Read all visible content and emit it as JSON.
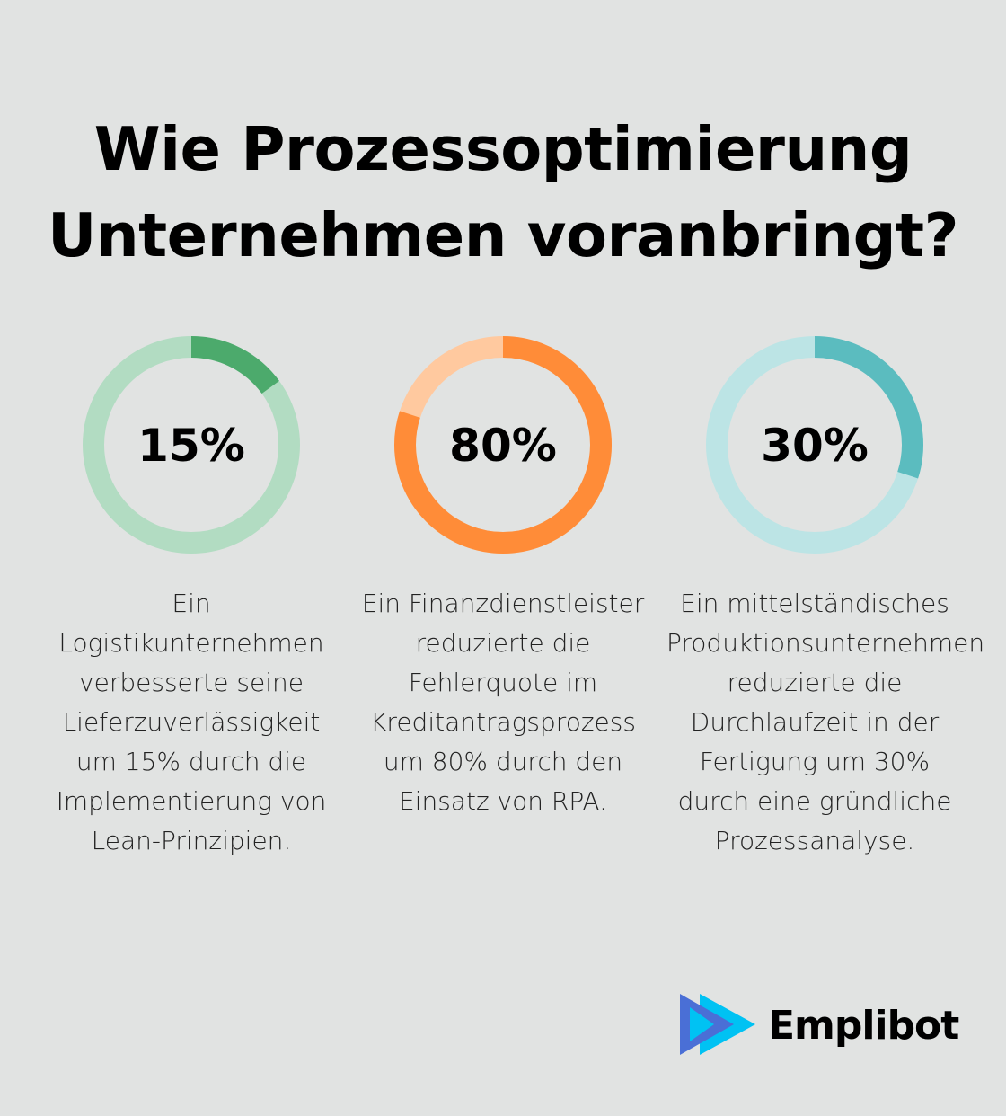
{
  "title": {
    "line1": "Wie Prozessoptimierung",
    "line2": "Unternehmen voranbringt?"
  },
  "chart_data": {
    "type": "donut",
    "title": "Wie Prozessoptimierung Unternehmen voranbringt?",
    "items": [
      {
        "label": "15%",
        "value": 15,
        "color": "#4caa6c",
        "track_color": "#b2dcc2",
        "description": "Ein Logistikunternehmen verbesserte seine Lieferzuverlässigkeit um 15% durch die Implementierung von Lean-Prinzipien."
      },
      {
        "label": "80%",
        "value": 80,
        "color": "#ff8c38",
        "track_color": "#ffc99f",
        "description": "Ein Finanzdienstleister reduzierte die Fehlerquote im Kreditantragsprozess um 80% durch den Einsatz von RPA."
      },
      {
        "label": "30%",
        "value": 30,
        "color": "#5bbcbf",
        "track_color": "#bce4e5",
        "description": "Ein mittelständisches Produktionsunternehmen reduzierte die Durchlaufzeit in der Fertigung um 30% durch eine gründliche Prozessanalyse."
      }
    ]
  },
  "logo": {
    "text": "Emplibot",
    "colors": {
      "blue": "#4a6fd6",
      "cyan": "#00c2f3"
    }
  }
}
